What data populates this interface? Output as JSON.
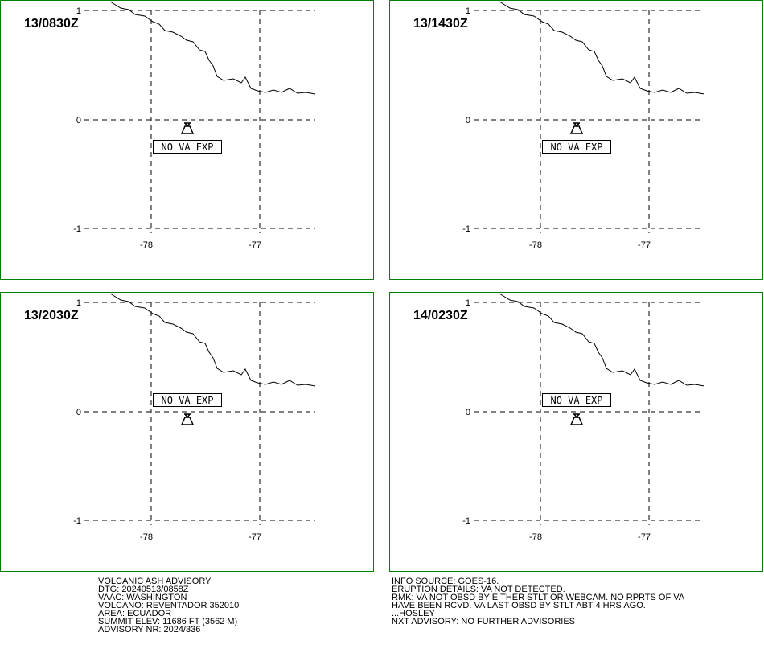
{
  "panels": [
    {
      "time": "13/0830Z",
      "label": "NO VA EXP"
    },
    {
      "time": "13/1430Z",
      "label": "NO VA EXP"
    },
    {
      "time": "13/2030Z",
      "label": "NO VA EXP"
    },
    {
      "time": "14/0230Z",
      "label": "NO VA EXP"
    }
  ],
  "lat_labels": [
    "1",
    "0",
    "-1"
  ],
  "lon_labels": [
    "-78",
    "-77"
  ],
  "advisory": {
    "left": [
      "VOLCANIC ASH ADVISORY",
      "DTG: 20240513/0858Z",
      "VAAC: WASHINGTON",
      "VOLCANO: REVENTADOR 352010",
      "AREA: ECUADOR",
      "SUMMIT ELEV: 11686 FT (3562 M)",
      "ADVISORY NR: 2024/336"
    ],
    "right": [
      "INFO SOURCE: GOES-16.",
      "ERUPTION DETAILS: VA NOT DETECTED.",
      "RMK: VA NOT OBSD BY EITHER STLT OR WEBCAM. NO RPRTS OF VA",
      "HAVE BEEN RCVD. VA LAST OBSD BY STLT ABT 4 HRS AGO.",
      "...HOSLEY",
      "NXT ADVISORY: NO FURTHER ADVISORIES"
    ]
  }
}
